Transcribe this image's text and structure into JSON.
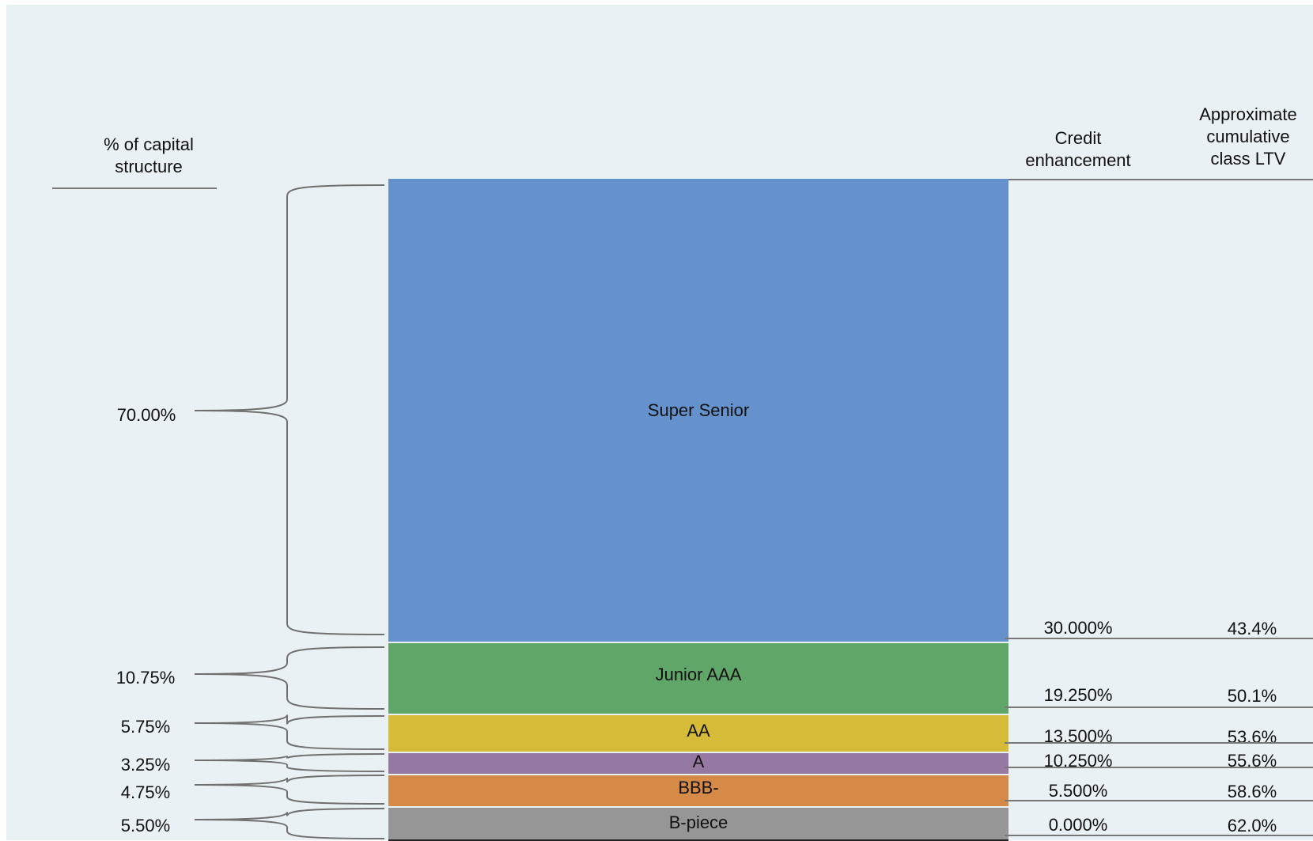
{
  "headers": {
    "capital_structure": "% of capital structure",
    "credit_enhancement": "Credit enhancement",
    "cumulative_ltv": "Approximate cumulative class LTV"
  },
  "tranches": [
    {
      "name": "Super Senior",
      "pct": "70.00%",
      "credit_enhancement": "30.000%",
      "ltv": "43.4%",
      "color": "#6592cc"
    },
    {
      "name": "Junior AAA",
      "pct": "10.75%",
      "credit_enhancement": "19.250%",
      "ltv": "50.1%",
      "color": "#60a668"
    },
    {
      "name": "AA",
      "pct": "5.75%",
      "credit_enhancement": "13.500%",
      "ltv": "53.6%",
      "color": "#d6bb39"
    },
    {
      "name": "A",
      "pct": "3.25%",
      "credit_enhancement": "10.250%",
      "ltv": "55.6%",
      "color": "#9679a3"
    },
    {
      "name": "BBB-",
      "pct": "4.75%",
      "credit_enhancement": "5.500%",
      "ltv": "58.6%",
      "color": "#d68a47"
    },
    {
      "name": "B-piece",
      "pct": "5.50%",
      "credit_enhancement": "0.000%",
      "ltv": "62.0%",
      "color": "#969696"
    }
  ]
}
